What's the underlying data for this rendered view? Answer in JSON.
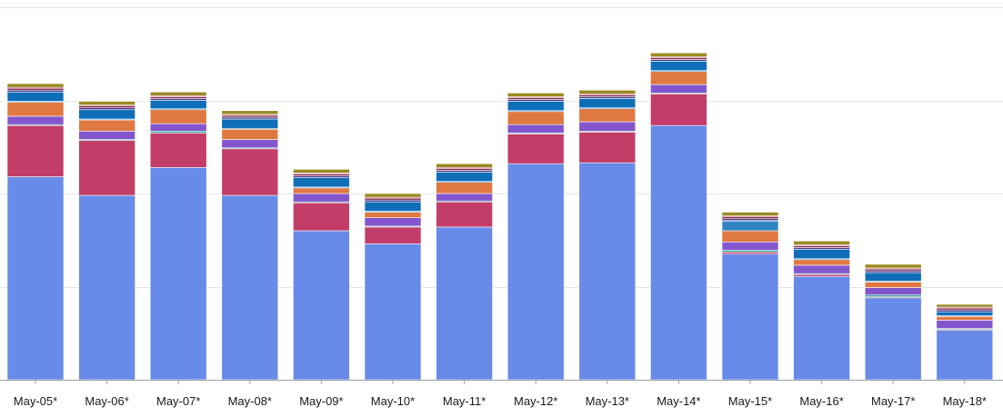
{
  "chart_data": {
    "type": "bar",
    "stacked": true,
    "categories": [
      "May-05*",
      "May-06*",
      "May-07*",
      "May-08*",
      "May-09*",
      "May-10*",
      "May-11*",
      "May-12*",
      "May-13*",
      "May-14*",
      "May-15*",
      "May-16*",
      "May-17*",
      "May-18*"
    ],
    "ylim": [
      0,
      400
    ],
    "yticks": [
      0,
      100,
      200,
      300,
      400
    ],
    "grid": true,
    "xlabel": "",
    "ylabel": "",
    "series": [
      {
        "color": "#688ae8",
        "values": [
          218,
          198,
          228,
          198,
          160,
          146,
          164,
          232,
          233,
          273,
          135,
          111,
          88,
          53
        ]
      },
      {
        "color": "#c33d69",
        "values": [
          55,
          59,
          37,
          50,
          30,
          18,
          27,
          32,
          33,
          34,
          2,
          2,
          1,
          1
        ]
      },
      {
        "color": "#2ea597",
        "values": [
          1,
          1,
          2,
          1,
          1,
          1,
          1,
          1,
          1,
          1,
          2,
          1,
          2,
          1
        ]
      },
      {
        "color": "#8456ce",
        "values": [
          9,
          9,
          8,
          9,
          9,
          9,
          8,
          9,
          10,
          9,
          9,
          9,
          8,
          9
        ]
      },
      {
        "color": "#e07941",
        "values": [
          15,
          12,
          15,
          11,
          6,
          6,
          12,
          14,
          14,
          14,
          12,
          6,
          6,
          4
        ]
      },
      {
        "color": "#3184c2",
        "values": [
          1,
          1,
          1,
          1,
          1,
          1,
          1,
          1,
          1,
          1,
          10,
          1,
          1,
          1
        ]
      },
      {
        "color": "#0f6eb8",
        "values": [
          10,
          10,
          9,
          10,
          10,
          10,
          10,
          10,
          10,
          10,
          1,
          10,
          9,
          4
        ]
      },
      {
        "color": "#3d3d8f",
        "values": [
          2,
          2,
          2,
          2,
          2,
          2,
          2,
          2,
          2,
          2,
          2,
          2,
          2,
          2
        ]
      },
      {
        "color": "#8c2347",
        "values": [
          2,
          2,
          2,
          2,
          2,
          2,
          2,
          2,
          2,
          2,
          2,
          2,
          2,
          2
        ]
      },
      {
        "color": "#962249",
        "values": [
          1,
          1,
          1,
          1,
          1,
          1,
          1,
          1,
          1,
          1,
          1,
          1,
          1,
          1
        ]
      },
      {
        "color": "#9b8a22",
        "values": [
          4,
          4,
          4,
          4,
          4,
          4,
          4,
          4,
          4,
          4,
          4,
          4,
          4,
          3
        ]
      }
    ]
  }
}
